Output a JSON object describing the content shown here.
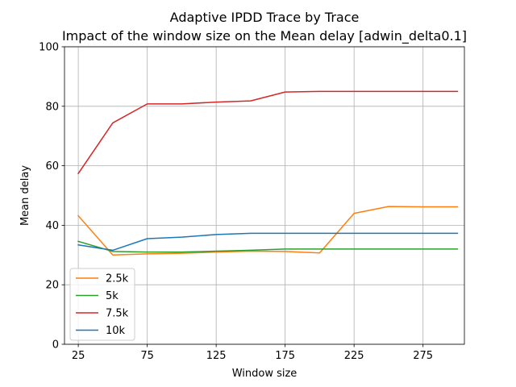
{
  "chart_data": {
    "type": "line",
    "title": "Adaptive IPDD Trace by Trace",
    "subtitle": "Impact of the window size on the Mean delay [adwin_delta0.1]",
    "xlabel": "Window size",
    "ylabel": "Mean delay",
    "xlim": [
      15,
      305
    ],
    "ylim": [
      0,
      100
    ],
    "xticks": [
      25,
      75,
      125,
      175,
      225,
      275
    ],
    "yticks": [
      0,
      20,
      40,
      60,
      80,
      100
    ],
    "grid": true,
    "legend_position": "lower-left",
    "x": [
      25,
      50,
      75,
      100,
      125,
      150,
      175,
      200,
      225,
      250,
      275,
      300
    ],
    "series": [
      {
        "name": "2.5k",
        "color": "#ff7f0e",
        "values": [
          43.2,
          30.0,
          30.4,
          30.6,
          31.0,
          31.3,
          31.2,
          30.7,
          44.0,
          46.3,
          46.2,
          46.2
        ]
      },
      {
        "name": "5k",
        "color": "#2ca02c",
        "values": [
          34.6,
          31.2,
          31.0,
          31.0,
          31.3,
          31.6,
          32.0,
          32.0,
          32.0,
          32.0,
          32.0,
          32.0
        ]
      },
      {
        "name": "7.5k",
        "color": "#d62728",
        "values": [
          57.4,
          74.4,
          80.8,
          80.8,
          81.4,
          81.8,
          84.8,
          85.0,
          85.0,
          85.0,
          85.0,
          85.0
        ]
      },
      {
        "name": "10k",
        "color": "#1f77b4",
        "values": [
          33.4,
          31.6,
          35.5,
          36.0,
          36.9,
          37.3,
          37.3,
          37.3,
          37.3,
          37.3,
          37.3,
          37.3
        ]
      }
    ]
  }
}
